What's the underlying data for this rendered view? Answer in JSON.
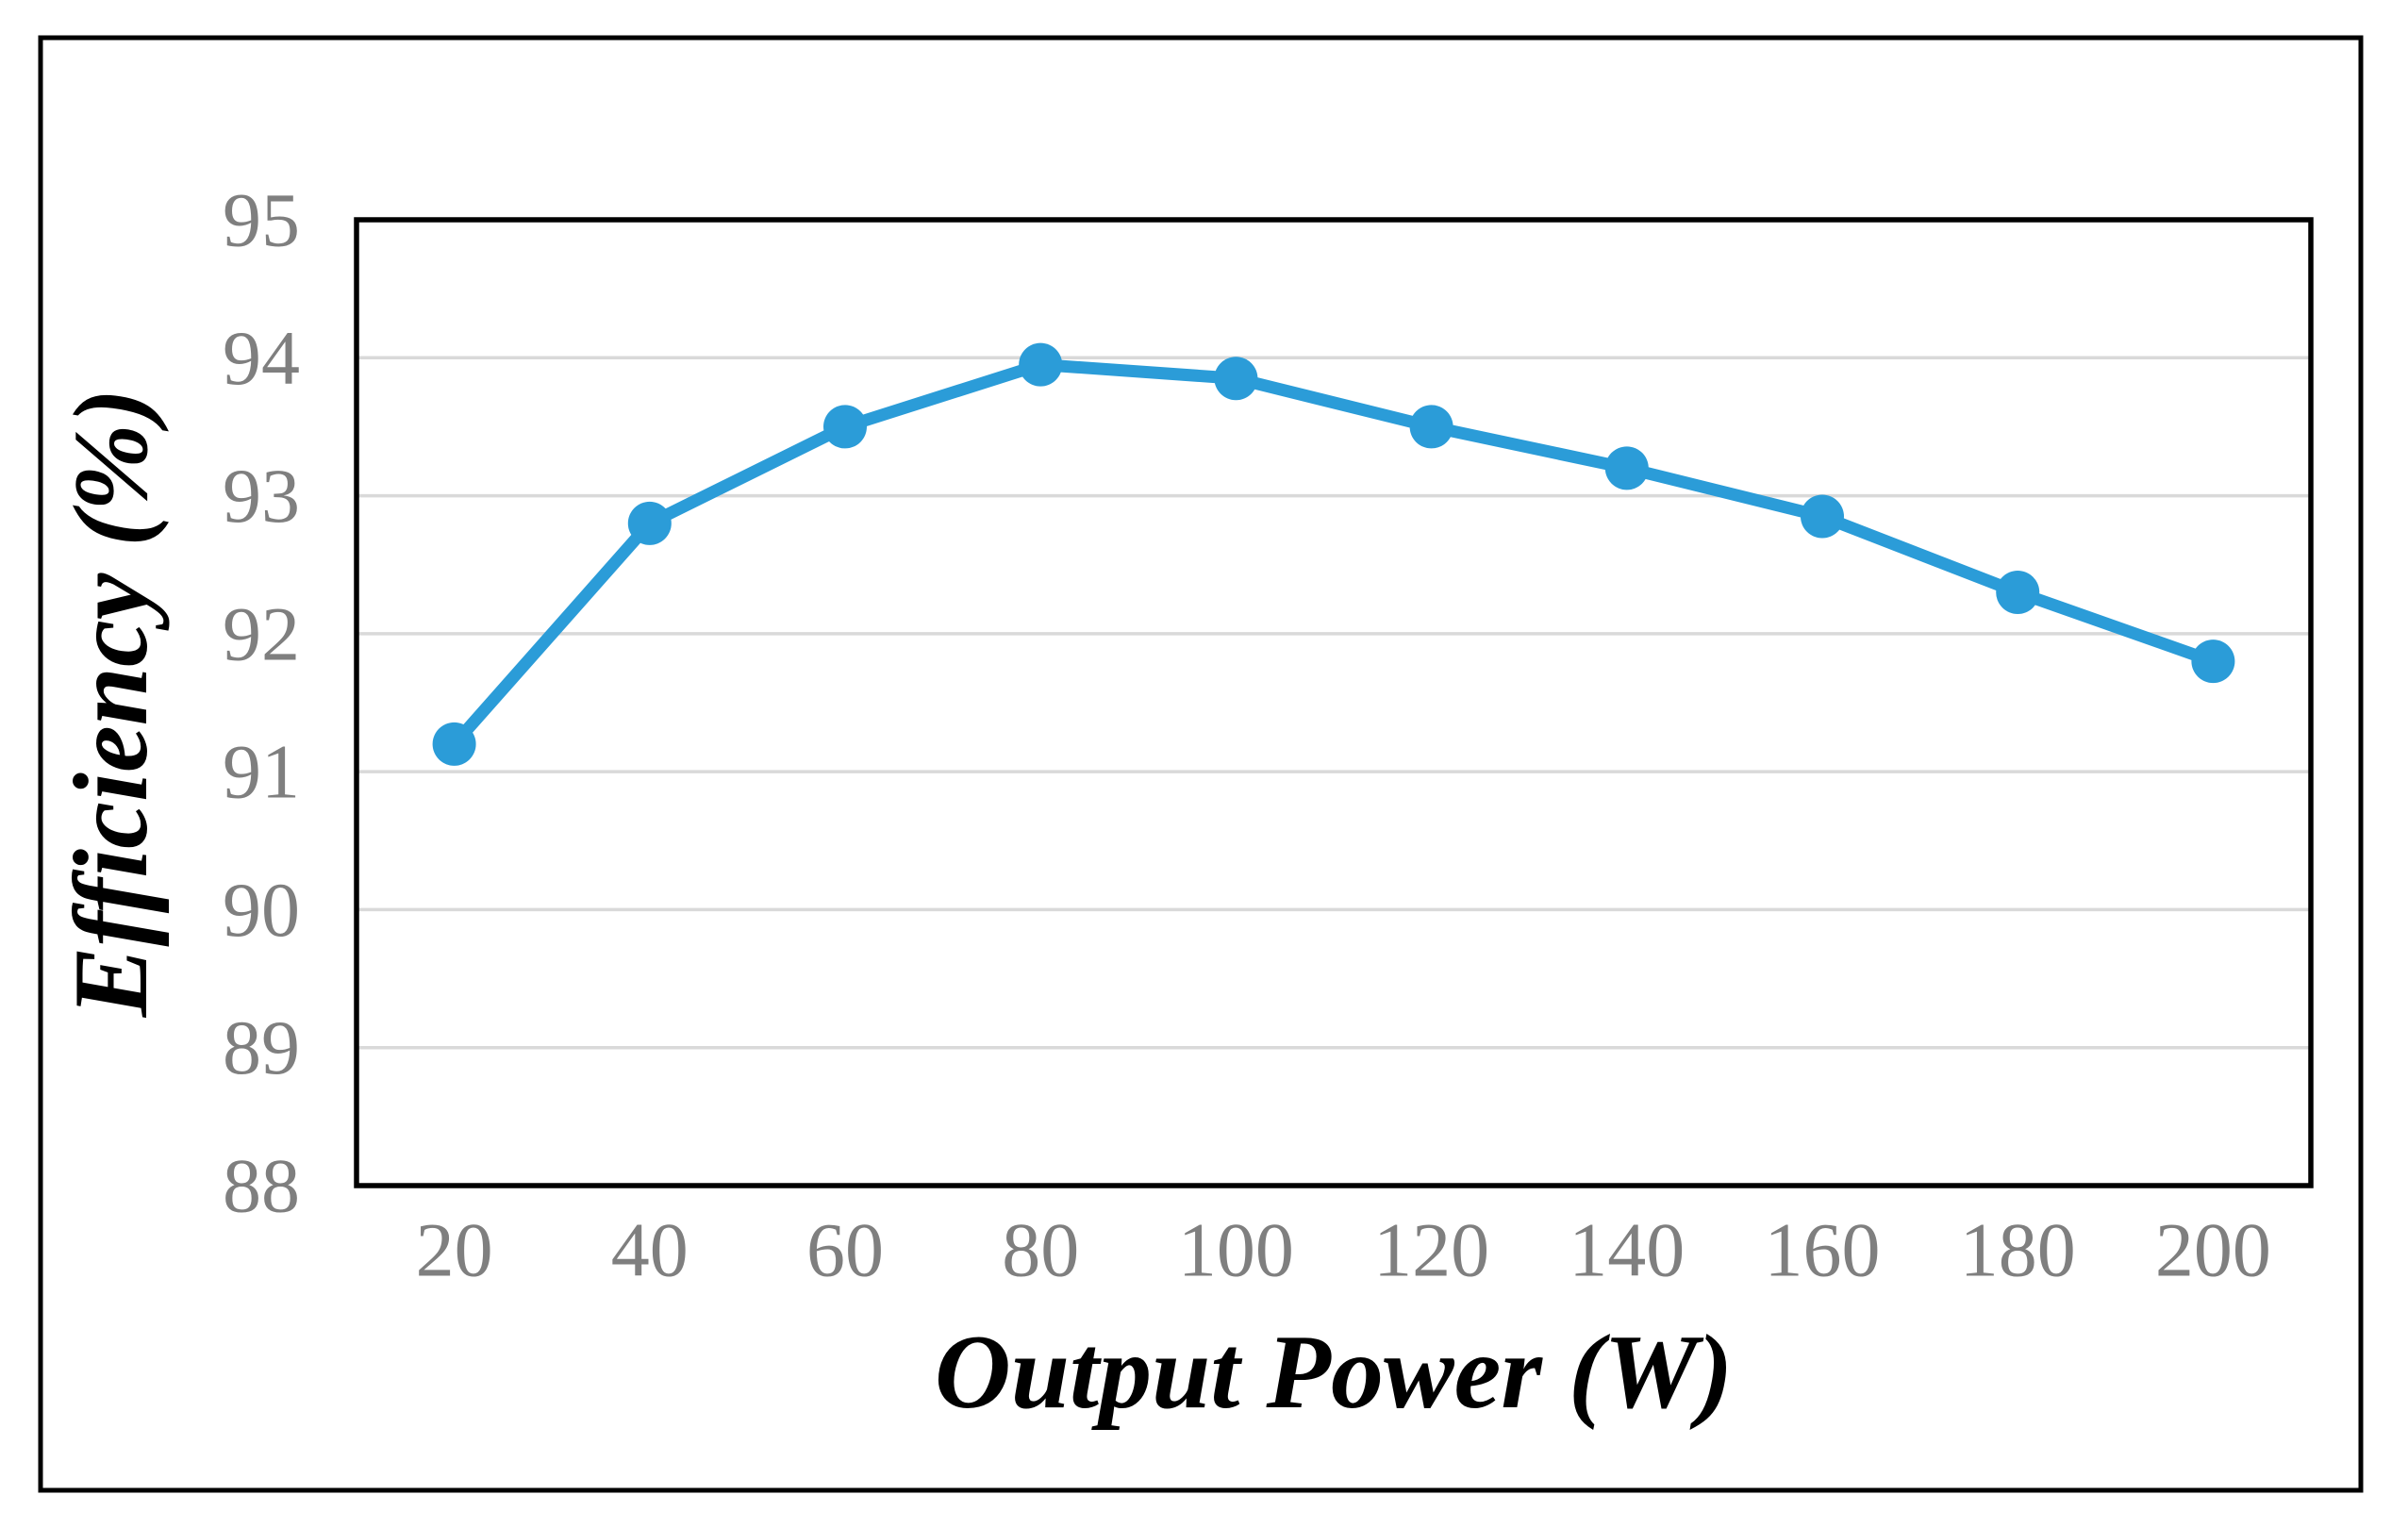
{
  "figure": {
    "background_color": "#ffffff",
    "outer_frame_color": "#000000",
    "plot_border_color": "#000000"
  },
  "chart_data": {
    "type": "line",
    "title": "",
    "xlabel": "Output Power (W)",
    "ylabel": "Efficiency (%)",
    "categories": [
      20,
      40,
      60,
      80,
      100,
      120,
      140,
      160,
      180,
      200
    ],
    "series": [
      {
        "name": "Efficiency",
        "values": [
          91.2,
          92.8,
          93.5,
          93.95,
          93.85,
          93.5,
          93.2,
          92.85,
          92.3,
          91.8
        ]
      }
    ],
    "ylim": [
      88,
      95
    ],
    "yticks": [
      88,
      89,
      90,
      91,
      92,
      93,
      94,
      95
    ],
    "grid": "horizontal",
    "legend": "none",
    "style": {
      "line_color": "#2B9CD8",
      "marker": "circle",
      "marker_radius": 23,
      "line_width": 13,
      "gridline_color": "#D9D9D9",
      "gridline_width": 3.5,
      "tick_label_color": "#7F7F7F",
      "axis_title_color": "#000000"
    }
  }
}
